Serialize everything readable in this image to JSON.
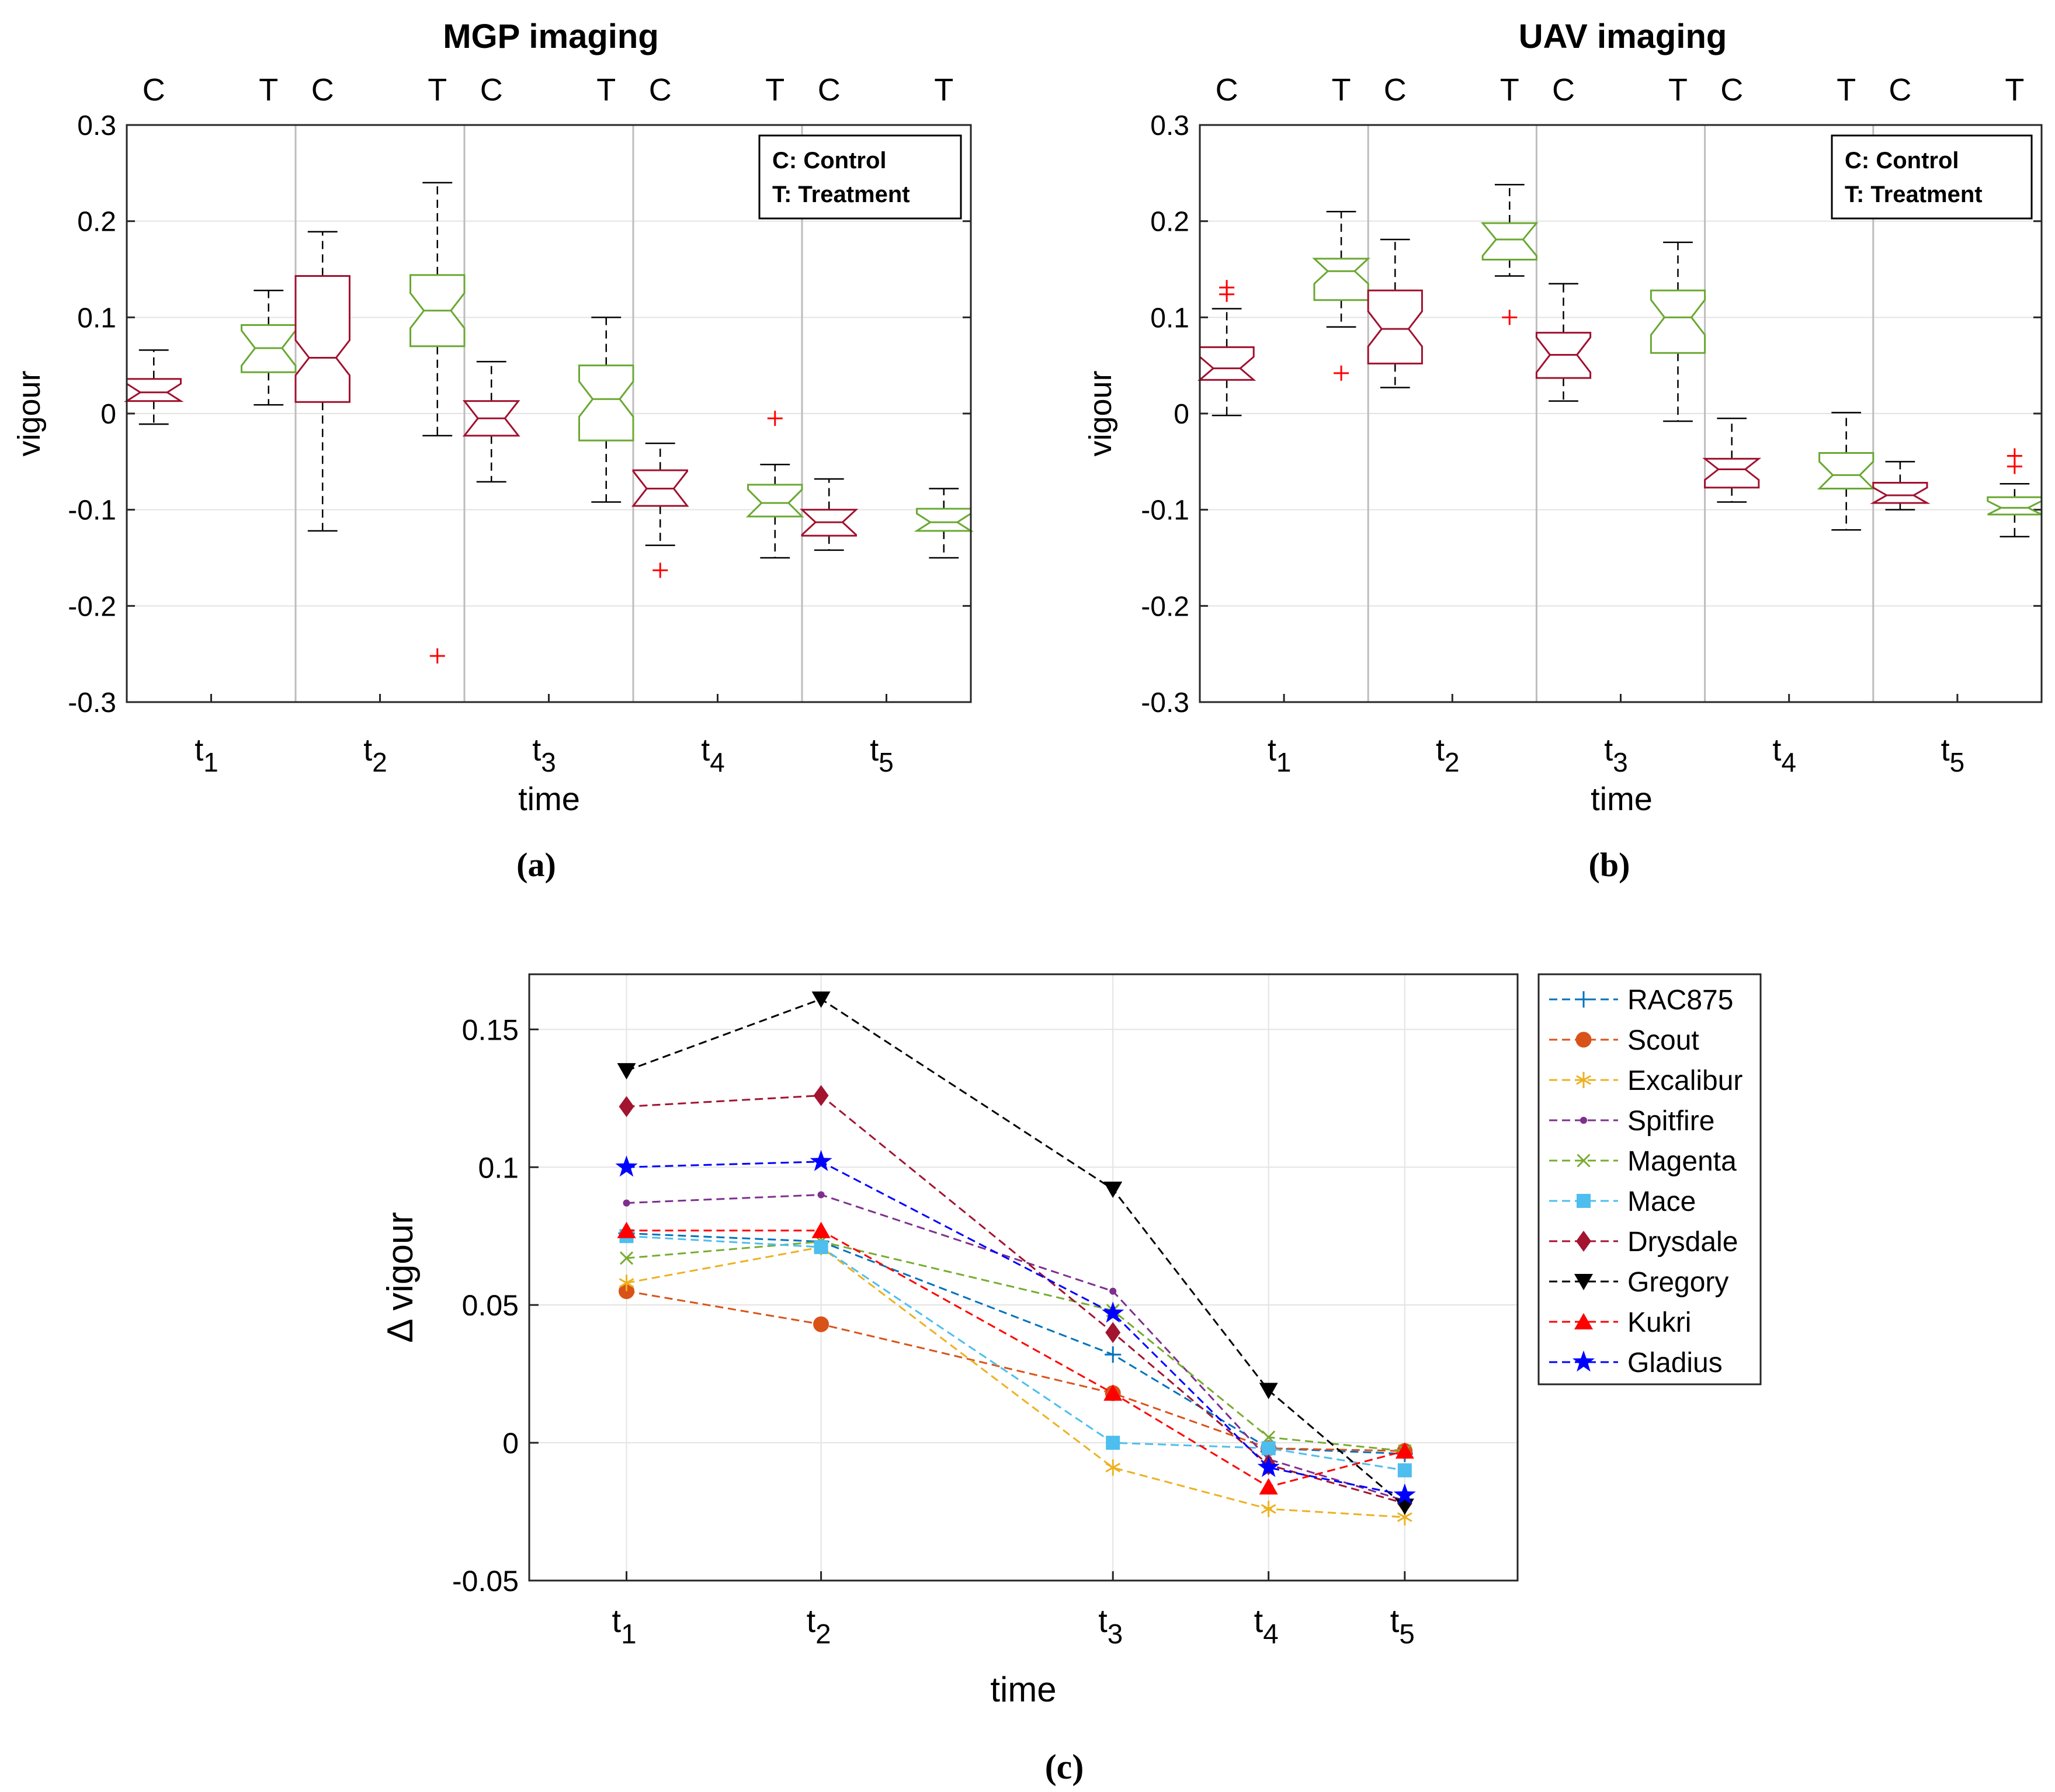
{
  "chart_data": [
    {
      "type": "boxplot",
      "panel_label": "(a)",
      "title": "MGP imaging",
      "xlabel": "time",
      "ylabel": "vigour",
      "ylim": [
        -0.3,
        0.3
      ],
      "yticks": [
        -0.3,
        -0.2,
        -0.1,
        0,
        0.1,
        0.2,
        0.3
      ],
      "group_top_labels": [
        "C",
        "T"
      ],
      "legend": [
        "C: Control",
        "T: Treatment"
      ],
      "legend_position": "top-right",
      "grid": true,
      "series_colors": {
        "Control": "#a0112f",
        "Treatment": "#6aa832"
      },
      "groups": [
        {
          "label": "t",
          "sub": "1",
          "boxes": [
            {
              "series": "Control",
              "whislo": -0.011,
              "q1": 0.013,
              "med": 0.022,
              "q3": 0.036,
              "whishi": 0.066,
              "fliers": []
            },
            {
              "series": "Treatment",
              "whislo": 0.009,
              "q1": 0.043,
              "med": 0.068,
              "q3": 0.092,
              "whishi": 0.128,
              "fliers": []
            }
          ]
        },
        {
          "label": "t",
          "sub": "2",
          "boxes": [
            {
              "series": "Control",
              "whislo": -0.122,
              "q1": 0.012,
              "med": 0.058,
              "q3": 0.143,
              "whishi": 0.189,
              "fliers": []
            },
            {
              "series": "Treatment",
              "whislo": -0.023,
              "q1": 0.07,
              "med": 0.107,
              "q3": 0.144,
              "whishi": 0.24,
              "fliers": [
                -0.252
              ]
            }
          ]
        },
        {
          "label": "t",
          "sub": "3",
          "boxes": [
            {
              "series": "Control",
              "whislo": -0.071,
              "q1": -0.023,
              "med": -0.005,
              "q3": 0.013,
              "whishi": 0.054,
              "fliers": []
            },
            {
              "series": "Treatment",
              "whislo": -0.092,
              "q1": -0.028,
              "med": 0.015,
              "q3": 0.05,
              "whishi": 0.1,
              "fliers": []
            }
          ]
        },
        {
          "label": "t",
          "sub": "4",
          "boxes": [
            {
              "series": "Control",
              "whislo": -0.137,
              "q1": -0.096,
              "med": -0.078,
              "q3": -0.059,
              "whishi": -0.031,
              "fliers": [
                -0.163
              ]
            },
            {
              "series": "Treatment",
              "whislo": -0.15,
              "q1": -0.107,
              "med": -0.093,
              "q3": -0.074,
              "whishi": -0.053,
              "fliers": [
                -0.005
              ]
            }
          ]
        },
        {
          "label": "t",
          "sub": "5",
          "boxes": [
            {
              "series": "Control",
              "whislo": -0.142,
              "q1": -0.127,
              "med": -0.113,
              "q3": -0.1,
              "whishi": -0.068,
              "fliers": []
            },
            {
              "series": "Treatment",
              "whislo": -0.15,
              "q1": -0.122,
              "med": -0.113,
              "q3": -0.099,
              "whishi": -0.078,
              "fliers": []
            }
          ]
        }
      ]
    },
    {
      "type": "boxplot",
      "panel_label": "(b)",
      "title": "UAV imaging",
      "xlabel": "time",
      "ylabel": "vigour",
      "ylim": [
        -0.3,
        0.3
      ],
      "yticks": [
        -0.3,
        -0.2,
        -0.1,
        0,
        0.1,
        0.2,
        0.3
      ],
      "group_top_labels": [
        "C",
        "T"
      ],
      "legend": [
        "C: Control",
        "T: Treatment"
      ],
      "legend_position": "top-right",
      "grid": true,
      "series_colors": {
        "Control": "#a0112f",
        "Treatment": "#6aa832"
      },
      "groups": [
        {
          "label": "t",
          "sub": "1",
          "boxes": [
            {
              "series": "Control",
              "whislo": -0.002,
              "q1": 0.035,
              "med": 0.047,
              "q3": 0.069,
              "whishi": 0.109,
              "fliers": [
                0.124,
                0.131
              ]
            },
            {
              "series": "Treatment",
              "whislo": 0.09,
              "q1": 0.118,
              "med": 0.148,
              "q3": 0.161,
              "whishi": 0.21,
              "fliers": [
                0.042
              ]
            }
          ]
        },
        {
          "label": "t",
          "sub": "2",
          "boxes": [
            {
              "series": "Control",
              "whislo": 0.027,
              "q1": 0.052,
              "med": 0.088,
              "q3": 0.128,
              "whishi": 0.181,
              "fliers": []
            },
            {
              "series": "Treatment",
              "whislo": 0.143,
              "q1": 0.16,
              "med": 0.181,
              "q3": 0.198,
              "whishi": 0.238,
              "fliers": [
                0.1
              ]
            }
          ]
        },
        {
          "label": "t",
          "sub": "3",
          "boxes": [
            {
              "series": "Control",
              "whislo": 0.013,
              "q1": 0.037,
              "med": 0.061,
              "q3": 0.084,
              "whishi": 0.135,
              "fliers": []
            },
            {
              "series": "Treatment",
              "whislo": -0.008,
              "q1": 0.063,
              "med": 0.1,
              "q3": 0.128,
              "whishi": 0.178,
              "fliers": []
            }
          ]
        },
        {
          "label": "t",
          "sub": "4",
          "boxes": [
            {
              "series": "Control",
              "whislo": -0.092,
              "q1": -0.077,
              "med": -0.058,
              "q3": -0.047,
              "whishi": -0.005,
              "fliers": []
            },
            {
              "series": "Treatment",
              "whislo": -0.121,
              "q1": -0.078,
              "med": -0.064,
              "q3": -0.041,
              "whishi": 0.001,
              "fliers": []
            }
          ]
        },
        {
          "label": "t",
          "sub": "5",
          "boxes": [
            {
              "series": "Control",
              "whislo": -0.1,
              "q1": -0.093,
              "med": -0.085,
              "q3": -0.072,
              "whishi": -0.05,
              "fliers": []
            },
            {
              "series": "Treatment",
              "whislo": -0.128,
              "q1": -0.105,
              "med": -0.098,
              "q3": -0.087,
              "whishi": -0.073,
              "fliers": [
                -0.055,
                -0.044
              ]
            }
          ]
        }
      ]
    },
    {
      "type": "line",
      "panel_label": "(c)",
      "xlabel": "time",
      "ylabel": "Δ vigour",
      "ylim": [
        -0.05,
        0.17
      ],
      "yticks": [
        -0.05,
        0,
        0.05,
        0.1,
        0.15
      ],
      "yticklabels": [
        "-0.05",
        "0",
        "0.05",
        "0.1",
        "0.15"
      ],
      "x": [
        1,
        2,
        3.5,
        4.3,
        5
      ],
      "xlim": [
        0.5,
        5.58
      ],
      "xticks": [
        {
          "label": "t",
          "sub": "1"
        },
        {
          "label": "t",
          "sub": "2"
        },
        {
          "label": "t",
          "sub": "3"
        },
        {
          "label": "t",
          "sub": "4"
        },
        {
          "label": "t",
          "sub": "5"
        }
      ],
      "grid": true,
      "legend_position": "outside-right",
      "series": [
        {
          "name": "RAC875",
          "color": "#0072bd",
          "marker": "plus",
          "values": [
            0.076,
            0.073,
            0.032,
            -0.002,
            -0.004
          ]
        },
        {
          "name": "Scout",
          "color": "#d95319",
          "marker": "circle",
          "values": [
            0.055,
            0.043,
            0.018,
            -0.002,
            -0.003
          ]
        },
        {
          "name": "Excalibur",
          "color": "#edb120",
          "marker": "asterisk",
          "values": [
            0.058,
            0.071,
            -0.009,
            -0.024,
            -0.027
          ]
        },
        {
          "name": "Spitfire",
          "color": "#7e2f8e",
          "marker": "dot",
          "values": [
            0.087,
            0.09,
            0.055,
            -0.006,
            -0.021
          ]
        },
        {
          "name": "Magenta",
          "color": "#77ac30",
          "marker": "x",
          "values": [
            0.067,
            0.073,
            0.048,
            0.002,
            -0.003
          ]
        },
        {
          "name": "Mace",
          "color": "#4dbeee",
          "marker": "square",
          "values": [
            0.075,
            0.071,
            0.0,
            -0.002,
            -0.01
          ]
        },
        {
          "name": "Drysdale",
          "color": "#a2142f",
          "marker": "diamond",
          "values": [
            0.122,
            0.126,
            0.04,
            -0.008,
            -0.022
          ]
        },
        {
          "name": "Gregory",
          "color": "#000000",
          "marker": "triangle-down",
          "values": [
            0.135,
            0.161,
            0.092,
            0.019,
            -0.023
          ]
        },
        {
          "name": "Kukri",
          "color": "#ff0000",
          "marker": "triangle-up",
          "values": [
            0.077,
            0.077,
            0.018,
            -0.016,
            -0.003
          ]
        },
        {
          "name": "Gladius",
          "color": "#0000ff",
          "marker": "star",
          "values": [
            0.1,
            0.102,
            0.047,
            -0.009,
            -0.019
          ]
        }
      ]
    }
  ]
}
